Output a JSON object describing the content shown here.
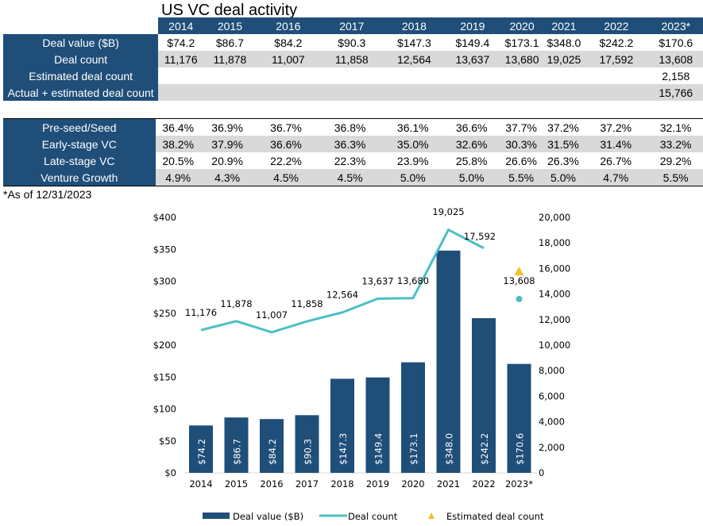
{
  "title": "US VC deal activity",
  "years": [
    "2014",
    "2015",
    "2016",
    "2017",
    "2018",
    "2019",
    "2020",
    "2021",
    "2022",
    "2023*"
  ],
  "table1": [
    {
      "label": "Deal value ($B)",
      "values": [
        "$74.2",
        "$86.7",
        "$84.2",
        "$90.3",
        "$147.3",
        "$149.4",
        "$173.1",
        "$348.0",
        "$242.2",
        "$170.6"
      ]
    },
    {
      "label": "Deal count",
      "values": [
        "11,176",
        "11,878",
        "11,007",
        "11,858",
        "12,564",
        "13,637",
        "13,680",
        "19,025",
        "17,592",
        "13,608"
      ]
    },
    {
      "label": "Estimated deal count",
      "values": [
        "",
        "",
        "",
        "",
        "",
        "",
        "",
        "",
        "",
        "2,158"
      ]
    },
    {
      "label": "Actual + estimated deal count",
      "values": [
        "",
        "",
        "",
        "",
        "",
        "",
        "",
        "",
        "",
        "15,766"
      ]
    }
  ],
  "table2": [
    {
      "label": "Pre-seed/Seed",
      "values": [
        "36.4%",
        "36.9%",
        "36.7%",
        "36.8%",
        "36.1%",
        "36.6%",
        "37.7%",
        "37.2%",
        "37.2%",
        "32.1%"
      ]
    },
    {
      "label": "Early-stage VC",
      "values": [
        "38.2%",
        "37.9%",
        "36.6%",
        "36.3%",
        "35.0%",
        "32.6%",
        "30.3%",
        "31.5%",
        "31.4%",
        "33.2%"
      ]
    },
    {
      "label": "Late-stage VC",
      "values": [
        "20.5%",
        "20.9%",
        "22.2%",
        "22.3%",
        "23.9%",
        "25.8%",
        "26.6%",
        "26.3%",
        "26.7%",
        "29.2%"
      ]
    },
    {
      "label": "Venture Growth",
      "values": [
        "4.9%",
        "4.3%",
        "4.5%",
        "4.5%",
        "5.0%",
        "5.0%",
        "5.5%",
        "5.0%",
        "4.7%",
        "5.5%"
      ]
    }
  ],
  "footnote": "*As of 12/31/2023",
  "chart_data": {
    "type": "bar+line",
    "categories": [
      "2014",
      "2015",
      "2016",
      "2017",
      "2018",
      "2019",
      "2020",
      "2021",
      "2022",
      "2023*"
    ],
    "series": [
      {
        "name": "Deal value ($B)",
        "type": "bar",
        "axis": "left",
        "values": [
          74.2,
          86.7,
          84.2,
          90.3,
          147.3,
          149.4,
          173.1,
          348.0,
          242.2,
          170.6
        ],
        "labels": [
          "$74.2",
          "$86.7",
          "$84.2",
          "$90.3",
          "$147.3",
          "$149.4",
          "$173.1",
          "$348.0",
          "$242.2",
          "$170.6"
        ],
        "color": "#1f4e79"
      },
      {
        "name": "Deal count",
        "type": "line",
        "axis": "right",
        "values": [
          11176,
          11878,
          11007,
          11858,
          12564,
          13637,
          13680,
          19025,
          17592,
          13608
        ],
        "labels": [
          "11,176",
          "11,878",
          "11,007",
          "11,858",
          "12,564",
          "13,637",
          "13,680",
          "19,025",
          "17,592",
          "13,608"
        ],
        "color": "#4bbfc4"
      },
      {
        "name": "Estimated deal count",
        "type": "marker",
        "axis": "right",
        "values": [
          null,
          null,
          null,
          null,
          null,
          null,
          null,
          null,
          null,
          15766
        ],
        "color": "#f2c12e"
      }
    ],
    "left_ticks": [
      "$0",
      "$50",
      "$100",
      "$150",
      "$200",
      "$250",
      "$300",
      "$350",
      "$400"
    ],
    "right_ticks": [
      "0",
      "2,000",
      "4,000",
      "6,000",
      "8,000",
      "10,000",
      "12,000",
      "14,000",
      "16,000",
      "18,000",
      "20,000"
    ],
    "ylim_left": [
      0,
      400
    ],
    "ylim_right": [
      0,
      20000
    ],
    "legend_position": "bottom"
  }
}
